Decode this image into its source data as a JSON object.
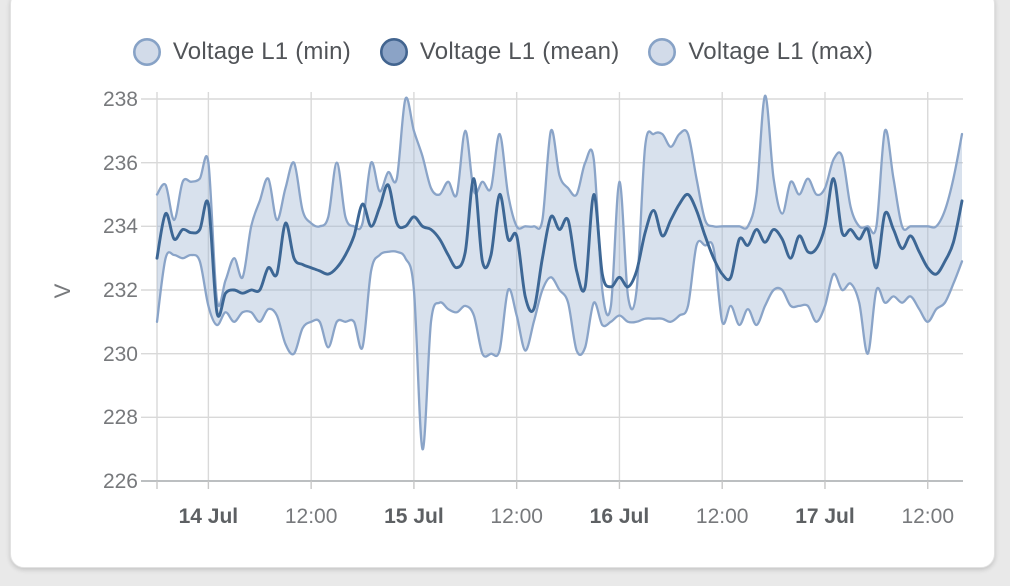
{
  "colors": {
    "card_bg": "#ffffff",
    "page_bg": "#e9e9e9",
    "band_fill": "rgba(158,180,209,0.40)",
    "minmax_line": "#8aa4c8",
    "mean_line": "#3d6795",
    "grid_line": "#d9d9d9",
    "axis_base_line": "#bcbfc1",
    "tick_mark": "#c7c7c7",
    "legend_min_fill": "#d2dbe9",
    "legend_min_stroke": "#87a2c6",
    "legend_mean_fill": "#8ba3c6",
    "legend_mean_stroke": "#42648f",
    "legend_max_fill": "#d2dbe9",
    "legend_max_stroke": "#87a2c6",
    "axis_text": "#77797c"
  },
  "legend": {
    "items": [
      {
        "label": "Voltage L1 (min)",
        "marker": "circle-icon"
      },
      {
        "label": "Voltage L1 (mean)",
        "marker": "circle-icon"
      },
      {
        "label": "Voltage L1 (max)",
        "marker": "circle-icon"
      }
    ]
  },
  "chart_data": {
    "type": "line",
    "title": "",
    "ylabel": "V",
    "xlabel": "",
    "ylim": [
      226,
      238
    ],
    "y_ticks": [
      226,
      228,
      230,
      232,
      234,
      236,
      238
    ],
    "grid": true,
    "legend_position": "top-center",
    "x_tick_labels": [
      "14 Jul",
      "12:00",
      "15 Jul",
      "12:00",
      "16 Jul",
      "12:00",
      "17 Jul",
      "12:00"
    ],
    "x_tick_bold": [
      true,
      false,
      true,
      false,
      true,
      false,
      true,
      false
    ],
    "x_tick_hours": [
      6,
      18,
      30,
      42,
      54,
      66,
      78,
      90
    ],
    "x_hours_total": 94,
    "series": [
      {
        "name": "Voltage L1 (min)",
        "values": [
          231.0,
          233.0,
          233.1,
          233.0,
          233.1,
          232.9,
          231.5,
          230.9,
          231.3,
          231.0,
          231.3,
          231.3,
          231.0,
          231.4,
          231.2,
          230.3,
          230.0,
          230.8,
          231.0,
          231.0,
          230.2,
          231.0,
          231.0,
          231.0,
          230.2,
          232.6,
          233.1,
          233.2,
          233.2,
          233.0,
          232.0,
          227.0,
          231.0,
          231.6,
          231.4,
          231.3,
          231.5,
          231.2,
          230.0,
          230.0,
          230.1,
          232.0,
          231.2,
          230.1,
          231.0,
          232.0,
          232.4,
          232.0,
          231.6,
          230.1,
          230.2,
          231.6,
          230.9,
          231.0,
          231.2,
          231.0,
          231.0,
          231.1,
          231.1,
          231.1,
          231.0,
          231.2,
          231.5,
          233.4,
          233.4,
          233.3,
          231.0,
          231.5,
          230.9,
          231.4,
          230.9,
          231.5,
          232.0,
          232.0,
          231.5,
          231.5,
          231.5,
          231.0,
          231.5,
          232.5,
          232.0,
          232.2,
          231.6,
          230.0,
          232.0,
          231.6,
          231.8,
          231.6,
          231.8,
          231.4,
          231.0,
          231.4,
          231.6,
          232.2,
          232.9
        ]
      },
      {
        "name": "Voltage L1 (mean)",
        "values": [
          233.0,
          234.4,
          233.6,
          233.9,
          233.8,
          233.9,
          234.7,
          231.3,
          231.9,
          232.0,
          231.9,
          232.0,
          232.0,
          232.7,
          232.5,
          234.1,
          233.0,
          232.8,
          232.7,
          232.6,
          232.5,
          232.7,
          233.1,
          233.7,
          234.7,
          234.0,
          234.6,
          235.3,
          234.1,
          234.0,
          234.3,
          234.0,
          233.9,
          233.6,
          233.1,
          232.7,
          233.2,
          235.5,
          232.9,
          233.1,
          235.0,
          233.6,
          233.7,
          231.8,
          231.4,
          233.0,
          234.3,
          233.9,
          234.2,
          232.6,
          232.1,
          235.0,
          232.5,
          232.1,
          232.4,
          232.1,
          232.6,
          233.8,
          234.5,
          233.7,
          234.2,
          234.7,
          235.0,
          234.5,
          233.7,
          233.0,
          232.5,
          232.4,
          233.6,
          233.4,
          233.9,
          233.5,
          233.9,
          233.6,
          233.0,
          233.7,
          233.2,
          233.3,
          234.0,
          235.5,
          233.8,
          233.9,
          233.6,
          233.9,
          232.7,
          234.4,
          233.9,
          233.3,
          233.7,
          233.2,
          232.7,
          232.5,
          232.9,
          233.5,
          234.8
        ]
      },
      {
        "name": "Voltage L1 (max)",
        "values": [
          235.0,
          235.3,
          234.2,
          235.4,
          235.4,
          235.5,
          236.0,
          231.7,
          232.3,
          233.0,
          232.4,
          234.0,
          234.8,
          235.5,
          234.2,
          235.2,
          236.0,
          234.5,
          234.1,
          234.0,
          234.3,
          236.0,
          234.3,
          234.0,
          234.1,
          236.0,
          235.1,
          235.7,
          235.5,
          238.0,
          237.0,
          236.2,
          235.2,
          235.0,
          235.4,
          235.0,
          237.0,
          235.1,
          235.4,
          235.2,
          236.9,
          235.0,
          234.0,
          234.0,
          234.0,
          234.2,
          237.0,
          235.6,
          235.2,
          235.0,
          236.0,
          236.1,
          232.0,
          231.5,
          235.4,
          231.8,
          232.0,
          236.5,
          236.9,
          236.9,
          236.5,
          236.9,
          236.9,
          235.5,
          234.2,
          234.0,
          234.0,
          234.0,
          234.0,
          234.0,
          235.0,
          238.1,
          235.5,
          234.4,
          235.4,
          235.0,
          235.5,
          235.0,
          235.2,
          236.1,
          236.2,
          234.6,
          234.0,
          234.0,
          234.0,
          237.0,
          235.5,
          234.0,
          234.0,
          234.0,
          234.0,
          234.0,
          234.5,
          235.5,
          236.9
        ]
      }
    ]
  }
}
